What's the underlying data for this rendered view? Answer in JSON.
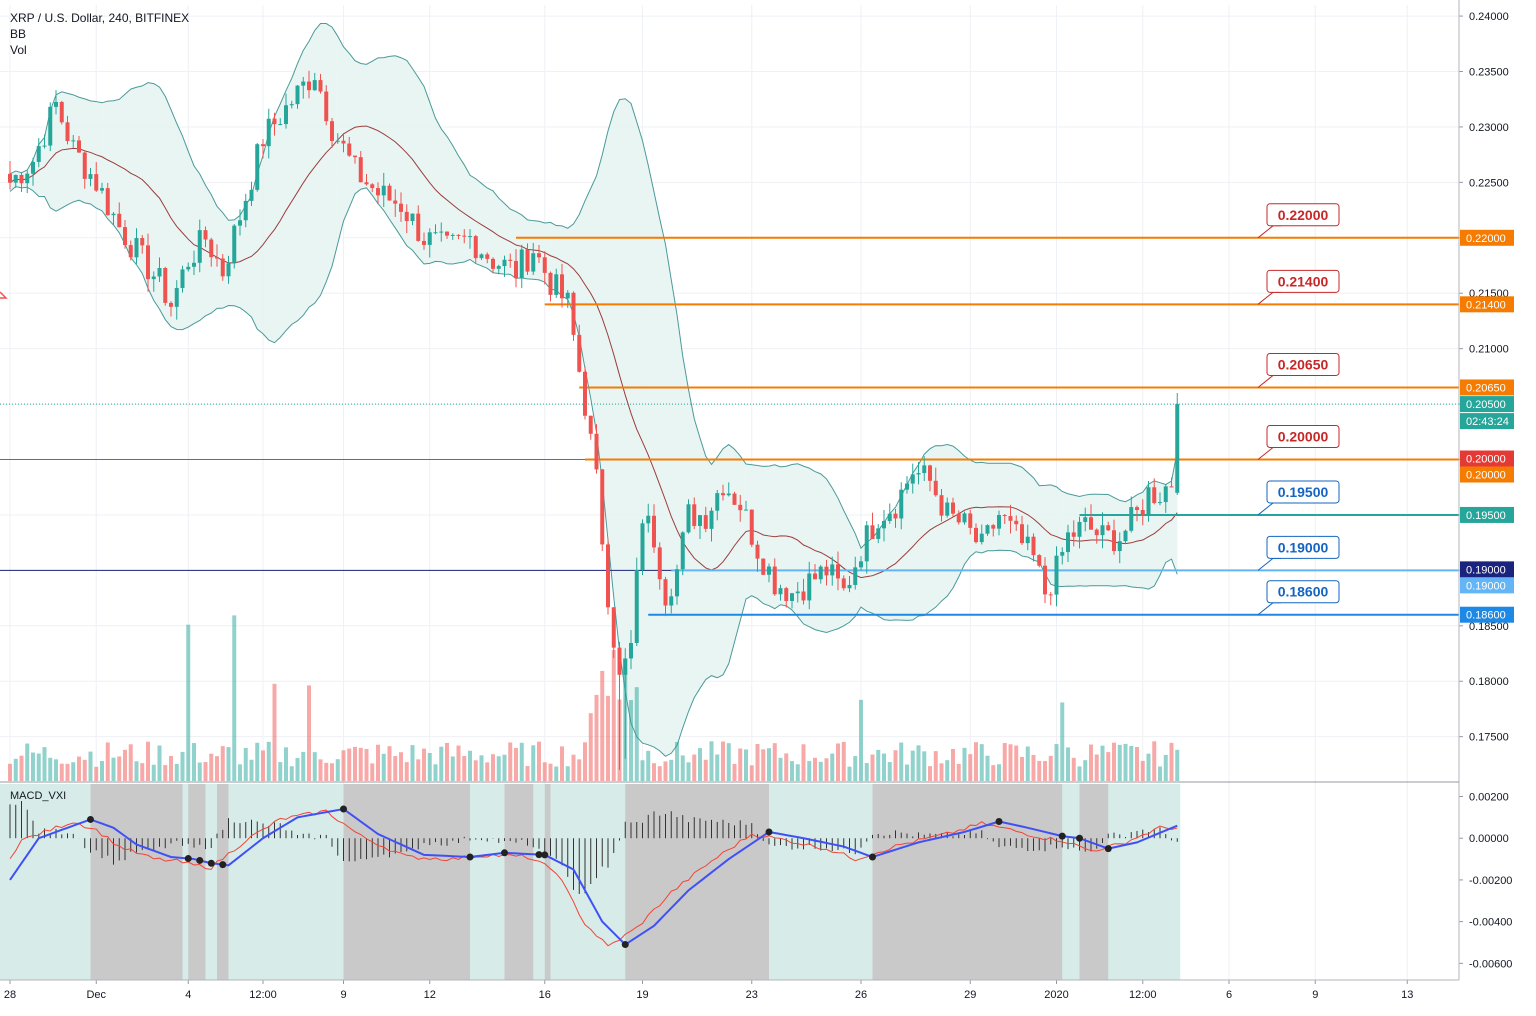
{
  "header": {
    "symbol_line": "XRP / U.S. Dollar, 240, BITFINEX",
    "indicator_1": "BB",
    "indicator_2": "Vol"
  },
  "macd_label": "MACD_VXI",
  "colors": {
    "up": "#26a69a",
    "down": "#ef5350",
    "bb_band": "#4a9a9a",
    "bb_fill": "#e6f4f2",
    "bb_basis": "#9c3d3d",
    "orange": "#f57c00",
    "red_level": "#e53935",
    "blue_dark": "#1a237e",
    "blue_light": "#42a5f5",
    "teal_label": "#26a69a",
    "macd_line": "#3f51f5",
    "signal_line": "#f44336",
    "macd_bg_up": "#d7ece9",
    "macd_bg_down": "#c9c9c9"
  },
  "chart_data": {
    "type": "candlestick",
    "title": "XRP / U.S. Dollar, 240, BITFINEX",
    "price_range": [
      0.171,
      0.241
    ],
    "price_ticks": [
      "0.24000",
      "0.23500",
      "0.23000",
      "0.22500",
      "0.22000",
      "0.21500",
      "0.21000",
      "0.20500",
      "0.20000",
      "0.19500",
      "0.19000",
      "0.18500",
      "0.18000",
      "0.17500"
    ],
    "x_ticks": [
      "28",
      "Dec",
      "4",
      "12:00",
      "9",
      "12",
      "16",
      "19",
      "23",
      "26",
      "29",
      "2020",
      "12:00",
      "6",
      "9",
      "13"
    ],
    "close_path": [
      [
        0,
        0.225
      ],
      [
        4,
        0.227
      ],
      [
        8,
        0.232
      ],
      [
        11,
        0.228
      ],
      [
        15,
        0.225
      ],
      [
        19,
        0.221
      ],
      [
        23,
        0.218
      ],
      [
        26,
        0.216
      ],
      [
        28,
        0.214
      ],
      [
        31,
        0.218
      ],
      [
        34,
        0.22
      ],
      [
        37,
        0.217
      ],
      [
        40,
        0.222
      ],
      [
        44,
        0.229
      ],
      [
        47,
        0.231
      ],
      [
        50,
        0.233
      ],
      [
        53,
        0.235
      ],
      [
        56,
        0.23
      ],
      [
        60,
        0.226
      ],
      [
        64,
        0.224
      ],
      [
        68,
        0.223
      ],
      [
        72,
        0.22
      ],
      [
        76,
        0.219
      ],
      [
        80,
        0.22
      ],
      [
        84,
        0.218
      ],
      [
        88,
        0.217
      ],
      [
        91,
        0.219
      ],
      [
        94,
        0.216
      ],
      [
        97,
        0.214
      ],
      [
        100,
        0.205
      ],
      [
        102,
        0.198
      ],
      [
        104,
        0.188
      ],
      [
        106,
        0.18
      ],
      [
        108,
        0.183
      ],
      [
        110,
        0.195
      ],
      [
        112,
        0.193
      ],
      [
        114,
        0.188
      ],
      [
        116,
        0.19
      ],
      [
        118,
        0.195
      ],
      [
        121,
        0.195
      ],
      [
        124,
        0.198
      ],
      [
        127,
        0.196
      ],
      [
        130,
        0.192
      ],
      [
        133,
        0.189
      ],
      [
        136,
        0.188
      ],
      [
        139,
        0.189
      ],
      [
        142,
        0.19
      ],
      [
        145,
        0.188
      ],
      [
        148,
        0.192
      ],
      [
        151,
        0.195
      ],
      [
        154,
        0.196
      ],
      [
        157,
        0.199
      ],
      [
        160,
        0.198
      ],
      [
        163,
        0.195
      ],
      [
        166,
        0.194
      ],
      [
        169,
        0.192
      ],
      [
        172,
        0.195
      ],
      [
        175,
        0.193
      ],
      [
        178,
        0.191
      ],
      [
        180,
        0.188
      ],
      [
        182,
        0.19
      ],
      [
        184,
        0.193
      ],
      [
        187,
        0.194
      ],
      [
        190,
        0.193
      ],
      [
        193,
        0.193
      ],
      [
        196,
        0.195
      ],
      [
        198,
        0.197
      ],
      [
        200,
        0.197
      ],
      [
        202,
        0.198
      ],
      [
        203,
        0.205
      ]
    ],
    "volume_range": [
      0,
      850
    ],
    "macd_range": [
      -0.0068,
      0.0026
    ],
    "macd_ticks": [
      "0.00200",
      "0.00000",
      "-0.00200",
      "-0.00400",
      "-0.00600"
    ],
    "macd_points": [
      [
        0,
        -0.002
      ],
      [
        5,
        0.0
      ],
      [
        14,
        0.0009
      ],
      [
        18,
        0.0005
      ],
      [
        22,
        -0.0003
      ],
      [
        28,
        -0.0009
      ],
      [
        32,
        -0.001
      ],
      [
        35,
        -0.0012
      ],
      [
        38,
        -0.0013
      ],
      [
        44,
        0.0
      ],
      [
        50,
        0.001
      ],
      [
        58,
        0.0014
      ],
      [
        64,
        0.0002
      ],
      [
        72,
        -0.0008
      ],
      [
        80,
        -0.0009
      ],
      [
        86,
        -0.0007
      ],
      [
        93,
        -0.0008
      ],
      [
        98,
        -0.0015
      ],
      [
        103,
        -0.004
      ],
      [
        107,
        -0.0051
      ],
      [
        112,
        -0.0042
      ],
      [
        118,
        -0.0025
      ],
      [
        125,
        -0.001
      ],
      [
        132,
        0.0003
      ],
      [
        138,
        0.0
      ],
      [
        145,
        -0.0004
      ],
      [
        150,
        -0.0009
      ],
      [
        158,
        -0.0002
      ],
      [
        166,
        0.0003
      ],
      [
        172,
        0.0008
      ],
      [
        177,
        0.0005
      ],
      [
        183,
        0.0001
      ],
      [
        186,
        0.0
      ],
      [
        191,
        -0.0005
      ],
      [
        196,
        -0.0002
      ],
      [
        203,
        0.0006
      ]
    ],
    "signal_offset": -0.0002,
    "macd_dots": [
      14,
      31,
      33,
      35,
      37,
      58,
      80,
      86,
      92,
      93,
      107,
      132,
      150,
      172,
      183,
      186,
      191
    ],
    "macd_grey_zones": [
      [
        14,
        30
      ],
      [
        31,
        34
      ],
      [
        36,
        38
      ],
      [
        58,
        80
      ],
      [
        86,
        91
      ],
      [
        93,
        94
      ],
      [
        107,
        132
      ],
      [
        150,
        172
      ],
      [
        172,
        183
      ],
      [
        186,
        191
      ]
    ],
    "levels": [
      {
        "value": 0.22,
        "label": "0.22000",
        "color": "#f57c00",
        "badge": "0.22000",
        "badge_color": "#f57c00",
        "start_index": 88,
        "callout": "0.22000",
        "callout_color": "#c62828"
      },
      {
        "value": 0.214,
        "label": "0.21400",
        "color": "#f57c00",
        "badge": "0.21400",
        "badge_color": "#f57c00",
        "start_index": 93,
        "callout": "0.21400",
        "callout_color": "#c62828"
      },
      {
        "value": 0.2065,
        "label": "0.20650",
        "color": "#f57c00",
        "badge": "0.20650",
        "badge_color": "#f57c00",
        "start_index": 99,
        "callout": "0.20650",
        "callout_color": "#c62828"
      },
      {
        "value": 0.2,
        "label": "0.20000",
        "color": "#f57c00",
        "badge": "0.20000",
        "badge_color": "#f57c00",
        "start_index": 100,
        "callout": "0.20000",
        "callout_color": "#c62828"
      },
      {
        "value": 0.195,
        "label": "0.19500",
        "color": "#26a69a",
        "badge": "0.19500",
        "badge_color": "#26a69a",
        "start_index": 186,
        "callout": "0.19500",
        "callout_color": "#1565c0"
      },
      {
        "value": 0.19,
        "label": "0.19000",
        "color": "#64b5f6",
        "badge": "0.19000",
        "badge_color": "#64b5f6",
        "start_index": 115,
        "callout": "0.19000",
        "callout_color": "#1565c0"
      },
      {
        "value": 0.186,
        "label": "0.18600",
        "color": "#1e88e5",
        "badge": "0.18600",
        "badge_color": "#1e88e5",
        "start_index": 111,
        "callout": "0.18600",
        "callout_color": "#1565c0"
      }
    ],
    "full_lines": [
      {
        "value": 0.2,
        "color": "#e53935",
        "badge": "0.20000",
        "badge_color": "#e53935"
      },
      {
        "value": 0.19,
        "color": "#1a237e",
        "badge": "0.19000",
        "badge_color": "#1a237e"
      }
    ],
    "current_price": {
      "value": 0.205,
      "label": "0.20500",
      "countdown": "02:43:24",
      "color": "#26a69a"
    }
  }
}
